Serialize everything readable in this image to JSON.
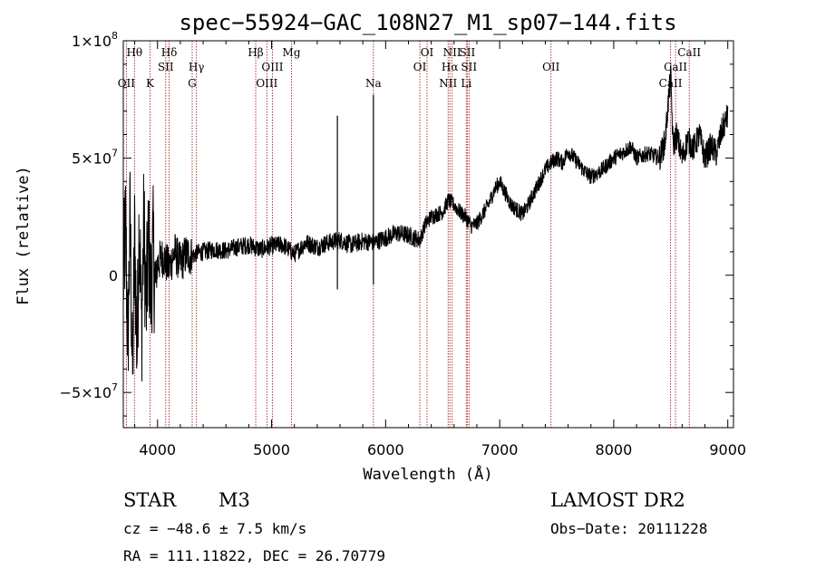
{
  "chart_data": {
    "type": "line",
    "title": "spec−55924−GAC_108N27_M1_sp07−144.fits",
    "xlabel": "Wavelength (Å)",
    "ylabel": "Flux (relative)",
    "xlim": [
      3700,
      9050
    ],
    "ylim": [
      -65000000,
      100000000
    ],
    "x_ticks": [
      4000,
      5000,
      6000,
      7000,
      8000,
      9000
    ],
    "x_tick_labels": [
      "4000",
      "5000",
      "6000",
      "7000",
      "8000",
      "9000"
    ],
    "y_ticks": [
      -50000000,
      0,
      50000000,
      100000000
    ],
    "y_tick_labels": [
      {
        "mant": "−5×10",
        "exp": "7"
      },
      {
        "mant": "0",
        "exp": ""
      },
      {
        "mant": "5×10",
        "exp": "7"
      },
      {
        "mant": "1×10",
        "exp": "8"
      }
    ],
    "grid": false,
    "line_color": "#000000",
    "marker_color": "#aa2222",
    "series": [
      {
        "x": [
          3700,
          3720,
          3740,
          3760,
          3780,
          3800,
          3820,
          3840,
          3860,
          3880,
          3900,
          3920,
          3940,
          3960,
          3980,
          4000,
          4050,
          4100,
          4150,
          4200,
          4250,
          4300,
          4350,
          4400,
          4500,
          4600,
          4700,
          4800,
          4900,
          5000,
          5100,
          5200,
          5300,
          5400,
          5500,
          5600,
          5700,
          5800,
          5900,
          6000,
          6100,
          6200,
          6300,
          6350,
          6400,
          6450,
          6500,
          6550,
          6600,
          6650,
          6700,
          6750,
          6800,
          6850,
          6900,
          6950,
          7000,
          7050,
          7100,
          7150,
          7200,
          7250,
          7300,
          7350,
          7400,
          7450,
          7500,
          7550,
          7600,
          7650,
          7700,
          7750,
          7800,
          7900,
          8000,
          8100,
          8150,
          8200,
          8300,
          8400,
          8450,
          8480,
          8500,
          8520,
          8550,
          8600,
          8650,
          8700,
          8750,
          8800,
          8850,
          8900,
          8950,
          9000
        ],
        "y": [
          -2000000,
          20000000,
          -30000000,
          25000000,
          -45000000,
          18000000,
          -35000000,
          28000000,
          -25000000,
          22000000,
          -15000000,
          15000000,
          -8000000,
          12000000,
          -5000000,
          5000000,
          8000000,
          3000000,
          10000000,
          5000000,
          9000000,
          8000000,
          9500000,
          10000000,
          11000000,
          10500000,
          12000000,
          13000000,
          11000000,
          12500000,
          13000000,
          9000000,
          14000000,
          12000000,
          14000000,
          15000000,
          13000000,
          14500000,
          14000000,
          16000000,
          18000000,
          17000000,
          15000000,
          22000000,
          25000000,
          26000000,
          27000000,
          32000000,
          30000000,
          27000000,
          25000000,
          21000000,
          22000000,
          26000000,
          30000000,
          36000000,
          40000000,
          35000000,
          30000000,
          28000000,
          26000000,
          30000000,
          35000000,
          40000000,
          45000000,
          48000000,
          50000000,
          48000000,
          53000000,
          50000000,
          47000000,
          44000000,
          42000000,
          45000000,
          50000000,
          53000000,
          55000000,
          50000000,
          52000000,
          50000000,
          57000000,
          75000000,
          85000000,
          55000000,
          60000000,
          50000000,
          58000000,
          54000000,
          60000000,
          50000000,
          55000000,
          52000000,
          62000000,
          68000000
        ]
      }
    ],
    "line_markers": [
      {
        "w": 3727,
        "label": "OII",
        "row": 3
      },
      {
        "w": 3798,
        "label": "Hθ",
        "row": 1
      },
      {
        "w": 3934,
        "label": "K",
        "row": 3
      },
      {
        "w": 4072,
        "label": "SII",
        "row": 2
      },
      {
        "w": 4102,
        "label": "Hδ",
        "row": 1
      },
      {
        "w": 4304,
        "label": "G",
        "row": 3
      },
      {
        "w": 4341,
        "label": "Hγ",
        "row": 2
      },
      {
        "w": 4861,
        "label": "Hβ",
        "row": 1
      },
      {
        "w": 4959,
        "label": "OIII",
        "row": 3
      },
      {
        "w": 5007,
        "label": "OIII",
        "row": 2
      },
      {
        "w": 5175,
        "label": "Mg",
        "row": 1
      },
      {
        "w": 5893,
        "label": "Na",
        "row": 3
      },
      {
        "w": 6300,
        "label": "OI",
        "row": 2
      },
      {
        "w": 6363,
        "label": "OI",
        "row": 1
      },
      {
        "w": 6548,
        "label": "NII",
        "row": 3
      },
      {
        "w": 6563,
        "label": "Hα",
        "row": 2
      },
      {
        "w": 6583,
        "label": "NII",
        "row": 1
      },
      {
        "w": 6707,
        "label": "Li",
        "row": 3
      },
      {
        "w": 6716,
        "label": "SII",
        "row": 1
      },
      {
        "w": 6731,
        "label": "SII",
        "row": 2
      },
      {
        "w": 7450,
        "label": "OII",
        "row": 2
      },
      {
        "w": 8498,
        "label": "CaII",
        "row": 3
      },
      {
        "w": 8542,
        "label": "CaII",
        "row": 2
      },
      {
        "w": 8662,
        "label": "CaII",
        "row": 1
      }
    ],
    "spikes": [
      {
        "x": 5577,
        "top": 68000000,
        "bottom": -6000000
      },
      {
        "x": 5893,
        "top": 77000000,
        "bottom": -4000000
      }
    ]
  },
  "info": {
    "object_class": "STAR",
    "subclass": "M3",
    "survey": "LAMOST DR2",
    "cz": "cz = −48.6 ± 7.5 km/s",
    "obs_date": "Obs−Date: 20111228",
    "coords": "RA = 111.11822, DEC =  26.70779"
  }
}
